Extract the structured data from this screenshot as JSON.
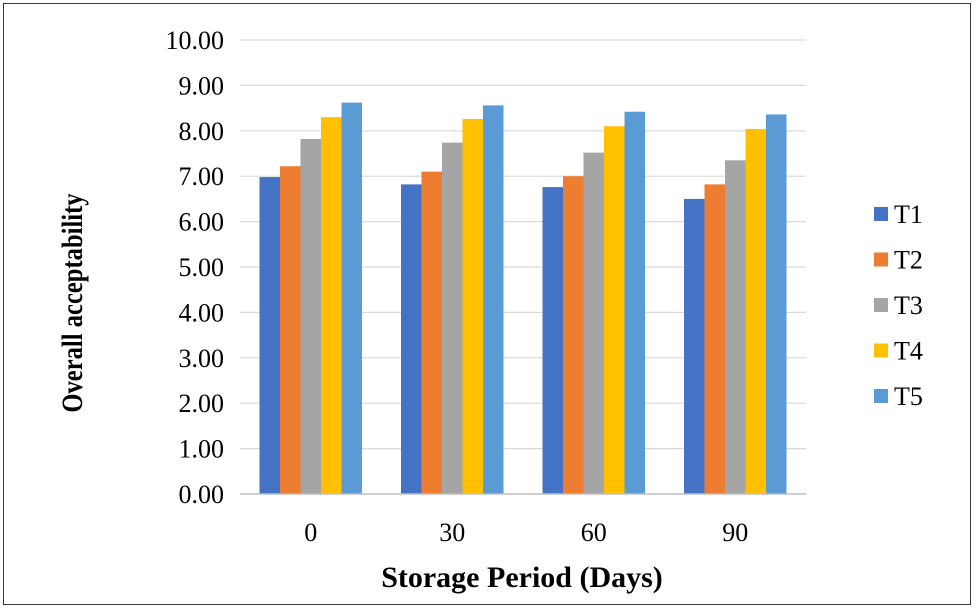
{
  "chart_data": {
    "type": "bar",
    "title": "",
    "xlabel": "Storage Period (Days)",
    "ylabel": "Overall acceptability",
    "categories": [
      "0",
      "30",
      "60",
      "90"
    ],
    "ylim": [
      0,
      10
    ],
    "ytick_step": 1,
    "ytick_labels": [
      "0.00",
      "1.00",
      "2.00",
      "3.00",
      "4.00",
      "5.00",
      "6.00",
      "7.00",
      "8.00",
      "9.00",
      "10.00"
    ],
    "grid": true,
    "legend_position": "right",
    "series": [
      {
        "name": "T1",
        "color": "#4472C4",
        "values": [
          6.98,
          6.82,
          6.76,
          6.5
        ]
      },
      {
        "name": "T2",
        "color": "#ED7D31",
        "values": [
          7.22,
          7.1,
          7.0,
          6.82
        ]
      },
      {
        "name": "T3",
        "color": "#A5A5A5",
        "values": [
          7.82,
          7.74,
          7.52,
          7.35
        ]
      },
      {
        "name": "T4",
        "color": "#FFC000",
        "values": [
          8.3,
          8.26,
          8.1,
          8.04
        ]
      },
      {
        "name": "T5",
        "color": "#5B9BD5",
        "values": [
          8.62,
          8.56,
          8.42,
          8.36
        ]
      }
    ]
  }
}
